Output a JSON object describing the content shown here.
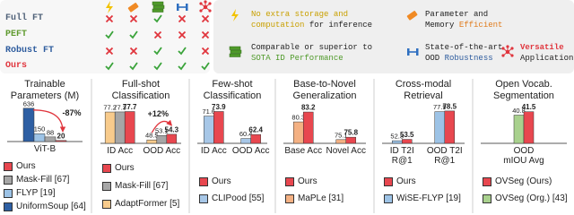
{
  "comparison_table": {
    "methods": [
      {
        "name": "Full FT",
        "color": "#4f6178",
        "supported": [
          false,
          false,
          true,
          false,
          false
        ]
      },
      {
        "name": "PEFT",
        "color": "#5f9a2e",
        "supported": [
          true,
          true,
          false,
          false,
          false
        ]
      },
      {
        "name": "Robust FT",
        "color": "#2e5c9e",
        "supported": [
          false,
          false,
          true,
          true,
          false
        ]
      },
      {
        "name": "Ours",
        "color": "#e0353d",
        "supported": [
          true,
          true,
          true,
          true,
          true
        ]
      }
    ]
  },
  "properties": [
    {
      "segments": [
        "No extra storage and computation",
        " for inference"
      ],
      "highlight": 0,
      "color": "#c9a000"
    },
    {
      "segments": [
        "Parameter and Memory ",
        "Efficient"
      ],
      "highlight": 1,
      "color": "#e07b1c"
    },
    {
      "segments": [
        "Comparable or superior to ",
        "SOTA ID Performance"
      ],
      "highlight": 1,
      "color": "#4f9a2a"
    },
    {
      "segments": [
        "State-of-the-art OOD ",
        "Robustness"
      ],
      "highlight": 1,
      "color": "#2e5c9e"
    },
    {
      "segments": [
        "Versatile",
        " Application"
      ],
      "highlight": 0,
      "color": "#e0353d"
    }
  ],
  "chart_data": [
    {
      "type": "bar",
      "title": "Trainable Parameters (M)",
      "categories": [
        "ViT-B"
      ],
      "ylim": [
        0,
        650
      ],
      "annotation": "-87%",
      "series": [
        {
          "name": "Ours",
          "color": "#e8474f",
          "values": [
            20
          ]
        },
        {
          "name": "Mask-Fill [67]",
          "color": "#a6a6a6",
          "values": [
            88
          ]
        },
        {
          "name": "FLYP [19]",
          "color": "#9dc3e6",
          "values": [
            150
          ]
        },
        {
          "name": "UniformSoup [64]",
          "color": "#2e5fa3",
          "values": [
            636
          ]
        }
      ]
    },
    {
      "type": "bar",
      "title": "Full-shot Classification",
      "categories": [
        "ID Acc",
        "OOD Acc"
      ],
      "ylim": [
        45,
        80
      ],
      "annotation": "+12%",
      "series": [
        {
          "name": "Ours",
          "color": "#e8474f",
          "values": [
            77.7,
            54.3
          ]
        },
        {
          "name": "Mask-Fill [67]",
          "color": "#a6a6a6",
          "values": [
            77.3,
            53.1
          ]
        },
        {
          "name": "AdaptFormer [5]",
          "color": "#f8cb8c",
          "values": [
            77.2,
            48.5
          ]
        }
      ]
    },
    {
      "type": "bar",
      "title": "Few-shot Classification",
      "categories": [
        "ID Acc",
        "OOD Acc"
      ],
      "ylim": [
        58,
        75
      ],
      "series": [
        {
          "name": "Ours",
          "color": "#e8474f",
          "values": [
            73.9,
            62.4
          ]
        },
        {
          "name": "CLIPood [55]",
          "color": "#a7c7e7",
          "values": [
            71.6,
            60.4
          ]
        }
      ]
    },
    {
      "type": "bar",
      "title": "Base-to-Novel Generalization",
      "categories": [
        "Base Acc",
        "Novel Acc"
      ],
      "ylim": [
        74,
        84
      ],
      "series": [
        {
          "name": "Ours",
          "color": "#e8474f",
          "values": [
            83.2,
            75.8
          ]
        },
        {
          "name": "MaPLe [31]",
          "color": "#f4b183",
          "values": [
            80.3,
            75.1
          ]
        }
      ]
    },
    {
      "type": "bar",
      "title": "Cross-modal Retrieval",
      "categories": [
        "ID T2I R@1",
        "OOD T2I R@1"
      ],
      "ylim": [
        50,
        80
      ],
      "series": [
        {
          "name": "Ours",
          "color": "#e8474f",
          "values": [
            53.5,
            78.5
          ]
        },
        {
          "name": "WiSE-FLYP [19]",
          "color": "#9dc3e6",
          "values": [
            52.3,
            77.9
          ]
        }
      ]
    },
    {
      "type": "bar",
      "title": "Open Vocab. Segmentation",
      "categories": [
        "OOD mIOU Avg"
      ],
      "ylim": [
        35,
        42
      ],
      "series": [
        {
          "name": "OVSeg (Ours)",
          "color": "#e8474f",
          "values": [
            41.5
          ]
        },
        {
          "name": "OVSeg (Org.) [43]",
          "color": "#a9d18e",
          "values": [
            40.8
          ]
        }
      ]
    }
  ]
}
